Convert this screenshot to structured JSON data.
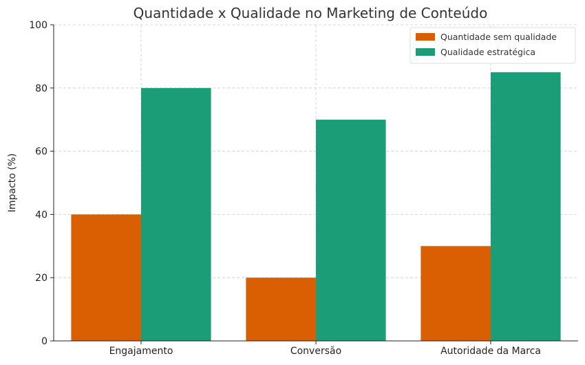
{
  "chart_data": {
    "type": "bar",
    "title": "Quantidade x Qualidade no Marketing de Conteúdo",
    "xlabel": "",
    "ylabel": "Impacto (%)",
    "categories": [
      "Engajamento",
      "Conversão",
      "Autoridade da Marca"
    ],
    "series": [
      {
        "name": "Quantidade sem qualidade",
        "values": [
          40,
          20,
          30
        ],
        "color": "#d95f02"
      },
      {
        "name": "Qualidade estratégica",
        "values": [
          80,
          70,
          85
        ],
        "color": "#1b9e77"
      }
    ],
    "ylim": [
      0,
      100
    ],
    "yticks": [
      0,
      20,
      40,
      60,
      80,
      100
    ],
    "grid": true,
    "legend_position": "top-right"
  }
}
